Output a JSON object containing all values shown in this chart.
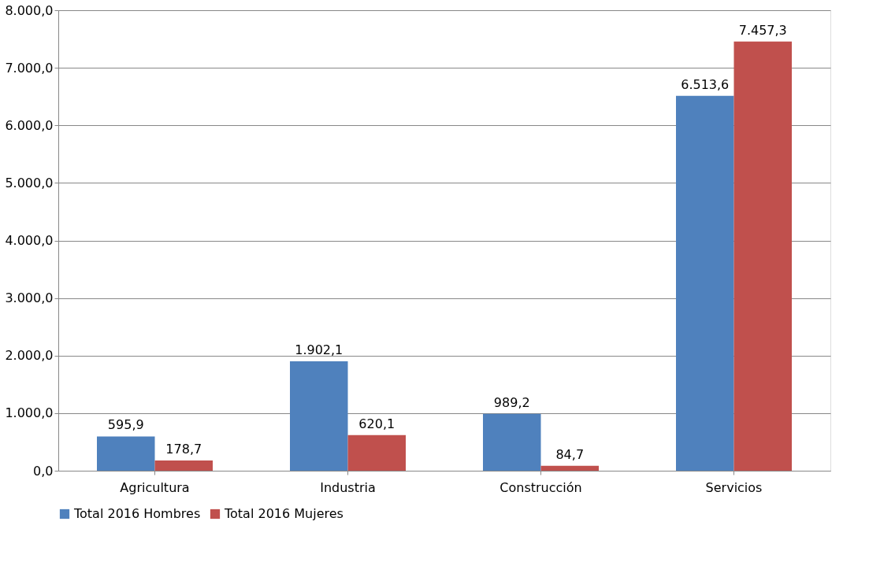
{
  "chart_data": {
    "type": "bar",
    "categories": [
      "Agricultura",
      "Industria",
      "Construcción",
      "Servicios"
    ],
    "series": [
      {
        "name": "Total 2016 Hombres",
        "color": "#4f81bd",
        "values": [
          595.9,
          1902.1,
          989.2,
          6513.6
        ],
        "value_labels": [
          "595,9",
          "1.902,1",
          "989,2",
          "6.513,6"
        ]
      },
      {
        "name": "Total 2016 Mujeres",
        "color": "#c0504d",
        "values": [
          178.7,
          620.1,
          84.7,
          7457.3
        ],
        "value_labels": [
          "178,7",
          "620,1",
          "84,7",
          "7.457,3"
        ]
      }
    ],
    "ylim": [
      0,
      8000
    ],
    "yticks": [
      {
        "value": 0,
        "label": "0,0"
      },
      {
        "value": 1000,
        "label": "1.000,0"
      },
      {
        "value": 2000,
        "label": "2.000,0"
      },
      {
        "value": 3000,
        "label": "3.000,0"
      },
      {
        "value": 4000,
        "label": "4.000,0"
      },
      {
        "value": 5000,
        "label": "5.000,0"
      },
      {
        "value": 6000,
        "label": "6.000,0"
      },
      {
        "value": 7000,
        "label": "7.000,0"
      },
      {
        "value": 8000,
        "label": "8.000,0"
      }
    ],
    "grid": "y",
    "legend": "bottom"
  }
}
